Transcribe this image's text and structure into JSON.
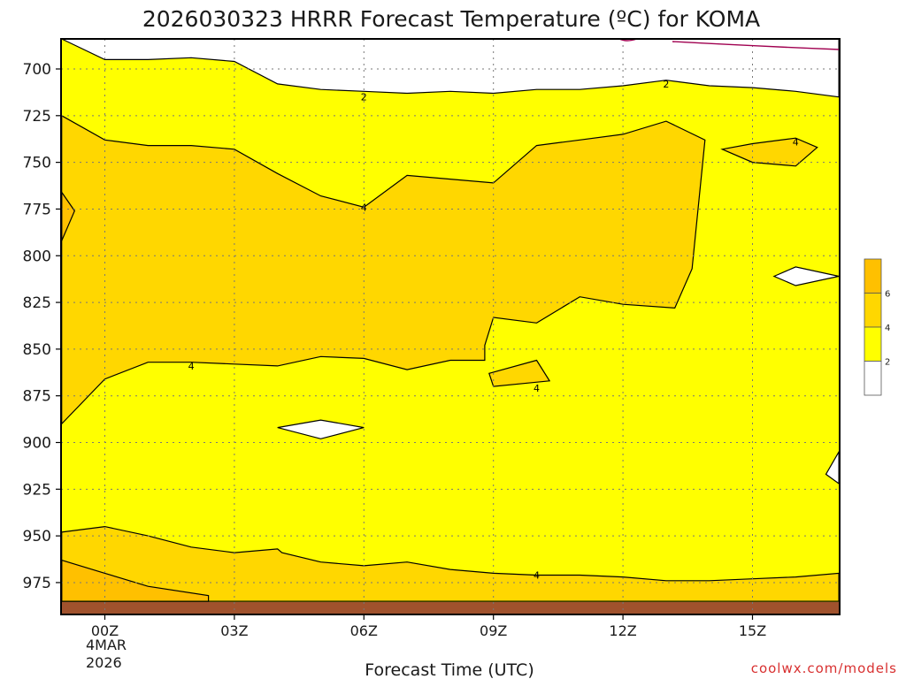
{
  "title": "2026030323 HRRR Forecast Temperature (ºC) for KOMA",
  "credit": "coolwx.com/models",
  "chart_data": {
    "type": "contour",
    "title": "2026030323 HRRR Forecast Temperature (ºC) for KOMA",
    "xlabel": "Forecast Time (UTC)",
    "ylabel": "",
    "x_ticks": [
      "00Z",
      "03Z",
      "06Z",
      "09Z",
      "12Z",
      "15Z"
    ],
    "x_tick_hours": [
      0,
      3,
      6,
      9,
      12,
      15
    ],
    "x_date_sub": [
      "4MAR",
      "2026"
    ],
    "xlim_hours": [
      -1,
      17
    ],
    "y_ticks": [
      700,
      725,
      750,
      775,
      800,
      825,
      850,
      875,
      900,
      925,
      950,
      975
    ],
    "ylim_hpa": [
      685,
      990
    ],
    "y_inverted": true,
    "grid": true,
    "colorbar": {
      "ticks": [
        "2",
        "4",
        "6"
      ],
      "bins": [
        {
          "range": "<2",
          "color": "#ffffff"
        },
        {
          "range": "2-4",
          "color": "#ffff00"
        },
        {
          "range": "4-6",
          "color": "#ffd700"
        },
        {
          "range": "6-8",
          "color": "#ffc000"
        }
      ]
    },
    "ground_color": "#a0522d",
    "contour_labels": [
      {
        "value": "2",
        "hour": 6.0,
        "p": 715
      },
      {
        "value": "2",
        "hour": 13.0,
        "p": 708
      },
      {
        "value": "4",
        "hour": 6.0,
        "p": 774
      },
      {
        "value": "4",
        "hour": 2.0,
        "p": 859
      },
      {
        "value": "4",
        "hour": 10.0,
        "p": 871
      },
      {
        "value": "4",
        "hour": 16.0,
        "p": 739
      },
      {
        "value": "4",
        "hour": 10.0,
        "p": 971
      }
    ],
    "regions": [
      {
        "level": "4-6",
        "points": [
          [
            -1,
            725
          ],
          [
            0,
            738
          ],
          [
            1,
            741
          ],
          [
            2,
            741
          ],
          [
            3,
            743
          ],
          [
            4,
            756
          ],
          [
            5,
            768
          ],
          [
            6,
            774
          ],
          [
            7,
            757
          ],
          [
            8,
            759
          ],
          [
            9,
            761
          ],
          [
            10,
            741
          ],
          [
            11,
            738
          ],
          [
            12,
            735
          ],
          [
            13,
            728
          ],
          [
            13.9,
            738
          ],
          [
            13.6,
            807
          ],
          [
            13.2,
            828
          ],
          [
            12,
            826
          ],
          [
            11,
            822
          ],
          [
            10,
            836
          ],
          [
            9,
            833
          ],
          [
            8.8,
            848
          ],
          [
            8.8,
            856
          ],
          [
            8,
            856
          ],
          [
            7,
            861
          ],
          [
            6,
            855
          ],
          [
            5,
            854
          ],
          [
            4,
            859
          ],
          [
            3,
            858
          ],
          [
            2,
            857
          ],
          [
            1,
            857
          ],
          [
            0,
            866
          ],
          [
            -1,
            890
          ]
        ]
      },
      {
        "level": "4-6",
        "points": [
          [
            -1,
            948
          ],
          [
            0,
            945
          ],
          [
            1,
            950
          ],
          [
            2,
            956
          ],
          [
            3,
            959
          ],
          [
            4,
            957
          ],
          [
            4.1,
            959
          ],
          [
            5,
            964
          ],
          [
            6,
            966
          ],
          [
            7,
            964
          ],
          [
            8,
            968
          ],
          [
            9,
            970
          ],
          [
            10,
            971
          ],
          [
            11,
            971
          ],
          [
            12,
            972
          ],
          [
            13,
            974
          ],
          [
            14,
            974
          ],
          [
            15,
            973
          ],
          [
            16,
            972
          ],
          [
            17,
            970
          ],
          [
            17,
            985
          ],
          [
            -1,
            985
          ]
        ]
      },
      {
        "level": "4-6",
        "points": [
          [
            8.9,
            863
          ],
          [
            10,
            856
          ],
          [
            10.3,
            867
          ],
          [
            9,
            870
          ]
        ]
      },
      {
        "level": "4-6",
        "points": [
          [
            14.3,
            743
          ],
          [
            15,
            740
          ],
          [
            16,
            737
          ],
          [
            16.5,
            742
          ],
          [
            16,
            752
          ],
          [
            15,
            750
          ]
        ]
      },
      {
        "level": "6-8",
        "points": [
          [
            -1,
            766
          ],
          [
            -0.7,
            776
          ],
          [
            -1,
            792
          ]
        ]
      },
      {
        "level": "6-8",
        "points": [
          [
            -1,
            963
          ],
          [
            0,
            970
          ],
          [
            1,
            977
          ],
          [
            2.4,
            982
          ],
          [
            2.4,
            985
          ],
          [
            -1,
            985
          ]
        ]
      },
      {
        "level": "<2",
        "points": [
          [
            -1,
            683
          ],
          [
            0,
            695
          ],
          [
            1,
            695
          ],
          [
            2,
            694
          ],
          [
            3,
            696
          ],
          [
            4,
            708
          ],
          [
            5,
            711
          ],
          [
            6,
            712
          ],
          [
            7,
            713
          ],
          [
            8,
            712
          ],
          [
            9,
            713
          ],
          [
            10,
            711
          ],
          [
            11,
            711
          ],
          [
            12,
            709
          ],
          [
            13,
            706
          ],
          [
            14,
            709
          ],
          [
            15,
            710
          ],
          [
            16,
            712
          ],
          [
            17,
            715
          ],
          [
            17,
            683
          ]
        ]
      },
      {
        "level": "<2",
        "points": [
          [
            4,
            892
          ],
          [
            5,
            888
          ],
          [
            6,
            892
          ],
          [
            5,
            898
          ]
        ]
      },
      {
        "level": "<2",
        "points": [
          [
            15.5,
            811
          ],
          [
            16,
            806
          ],
          [
            17,
            811
          ],
          [
            16,
            816
          ]
        ]
      },
      {
        "level": "<2",
        "points": [
          [
            16.7,
            917
          ],
          [
            17,
            905
          ],
          [
            17,
            922
          ]
        ]
      }
    ]
  }
}
